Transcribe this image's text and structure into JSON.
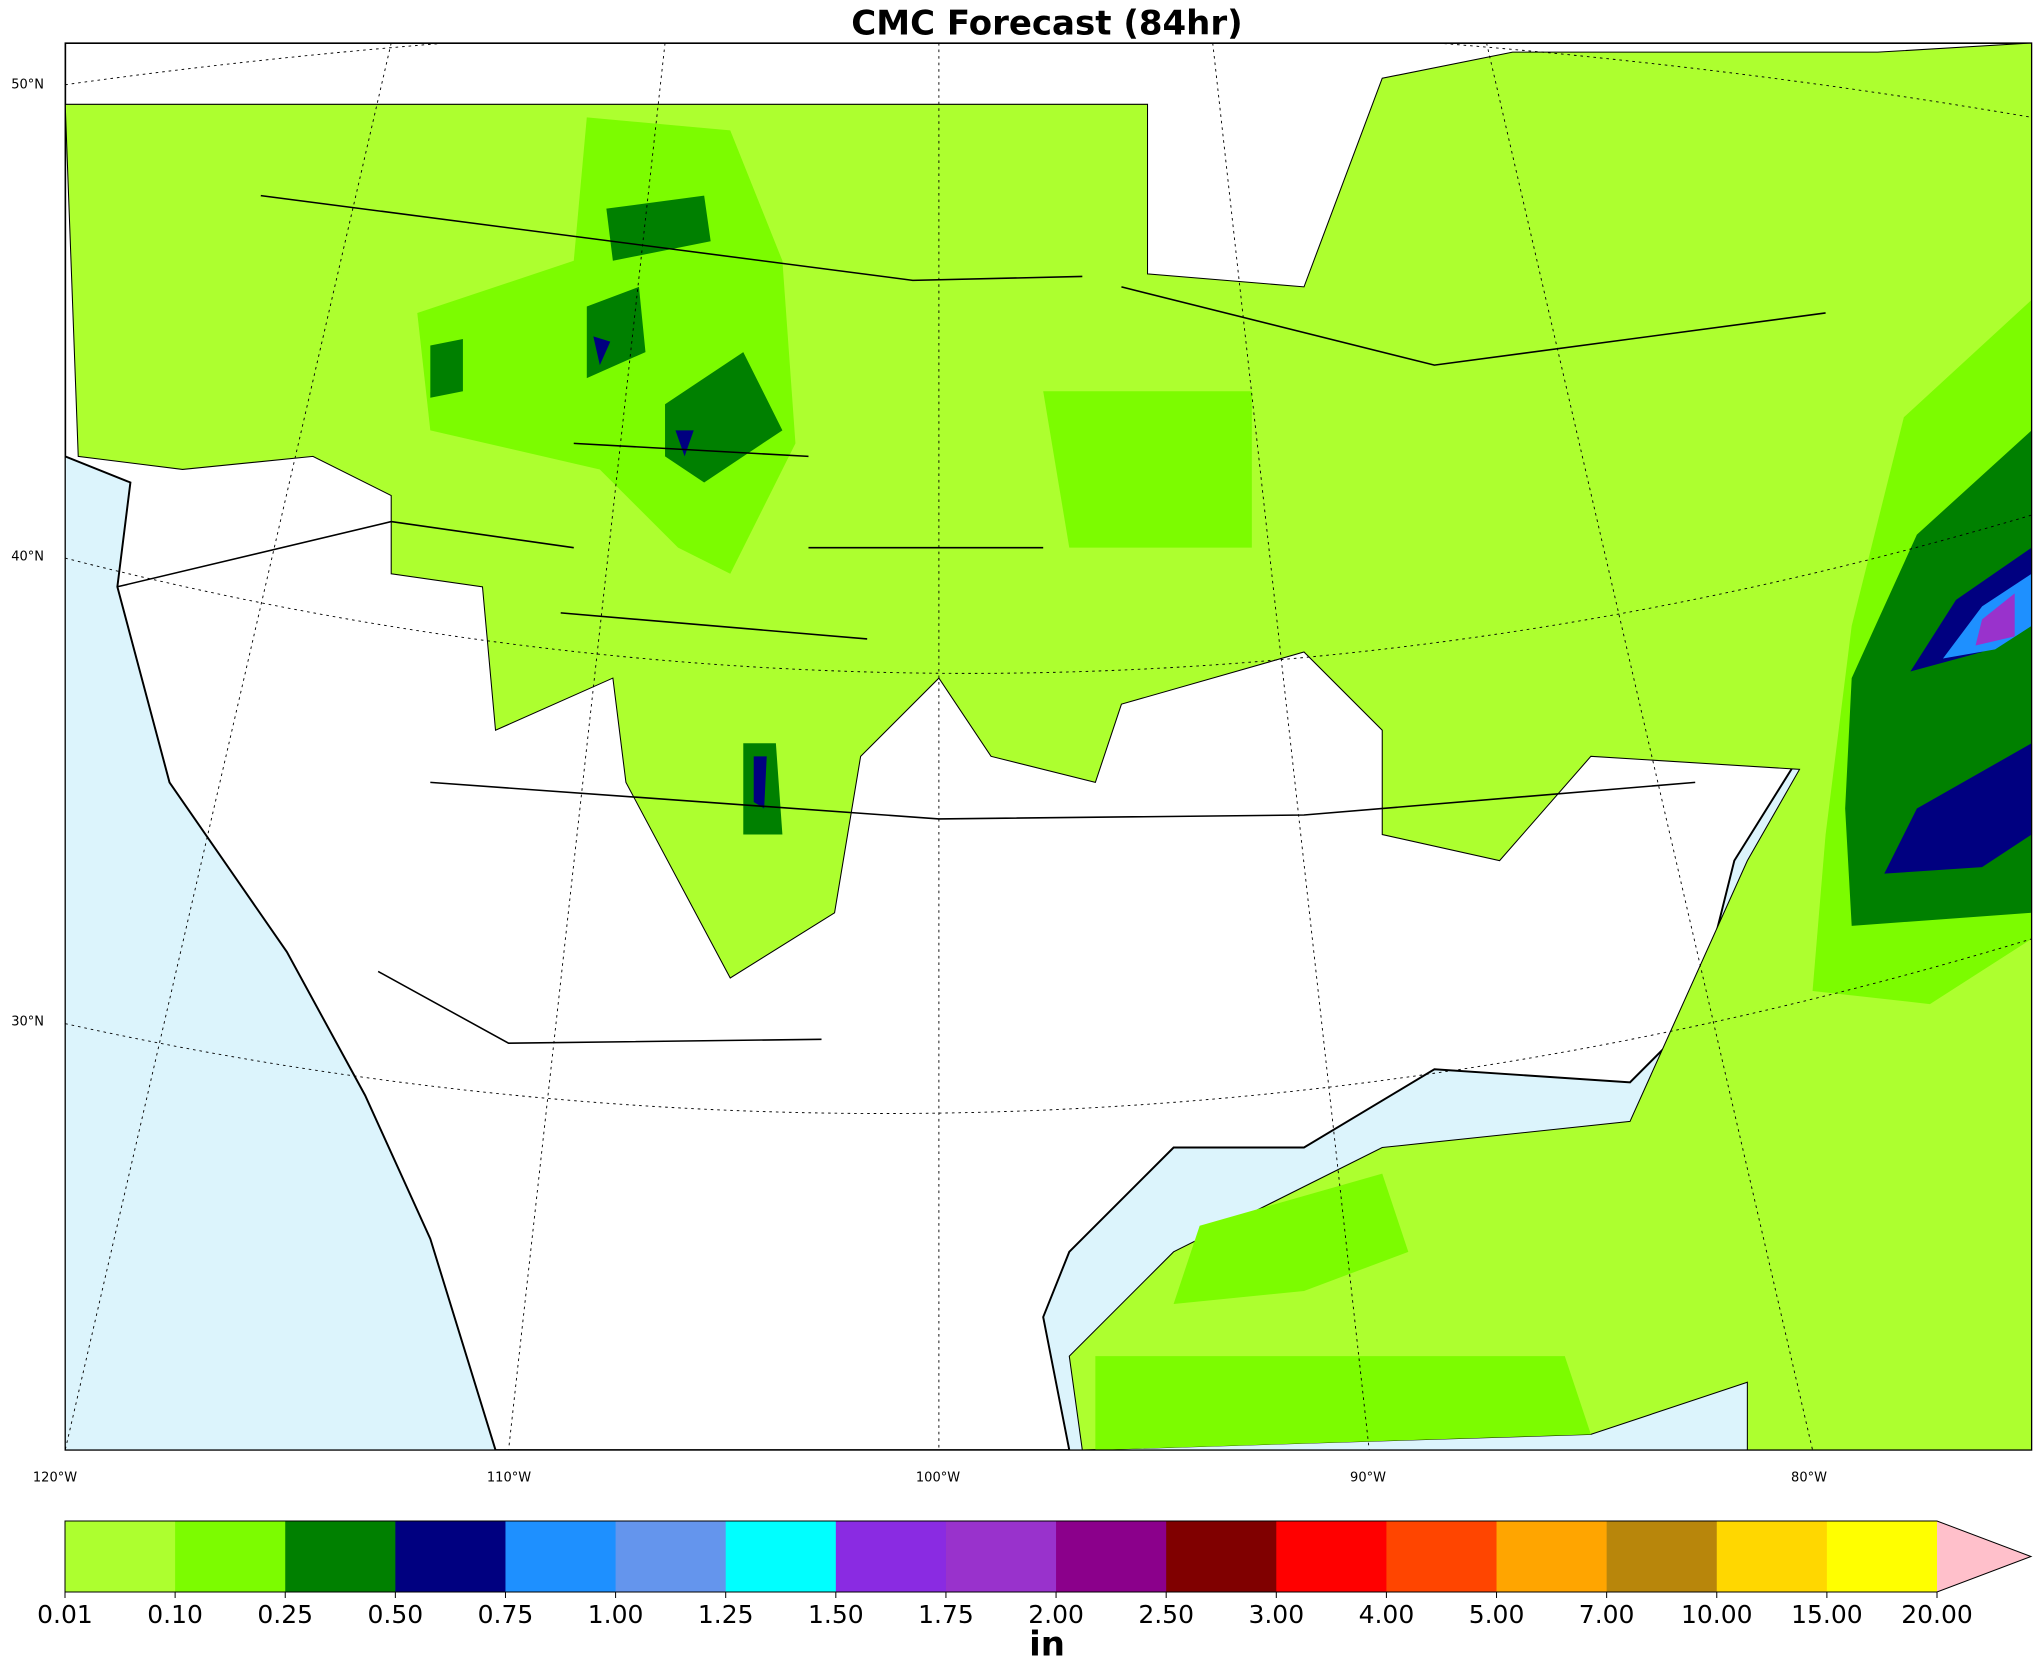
{
  "title": "CMC Forecast (84hr)",
  "map": {
    "lat_labels": [
      "50°N",
      "40°N",
      "30°N"
    ],
    "lon_labels": [
      "120°W",
      "110°W",
      "100°W",
      "90°W",
      "80°W"
    ]
  },
  "colorbar": {
    "colors": [
      "#adff2f",
      "#7cfc00",
      "#008000",
      "#000080",
      "#1e90ff",
      "#6495ed",
      "#00ffff",
      "#8a2be2",
      "#9932cc",
      "#8b008b",
      "#800000",
      "#ff0000",
      "#ff4500",
      "#ffa500",
      "#b8860b",
      "#ffd700",
      "#ffff00"
    ],
    "extend_color": "#ffc0cb",
    "ticks": [
      "0.01",
      "0.10",
      "0.25",
      "0.50",
      "0.75",
      "1.00",
      "1.25",
      "1.50",
      "1.75",
      "2.00",
      "2.50",
      "3.00",
      "4.00",
      "5.00",
      "7.00",
      "10.00",
      "15.00",
      "20.00"
    ],
    "unit": "in"
  }
}
